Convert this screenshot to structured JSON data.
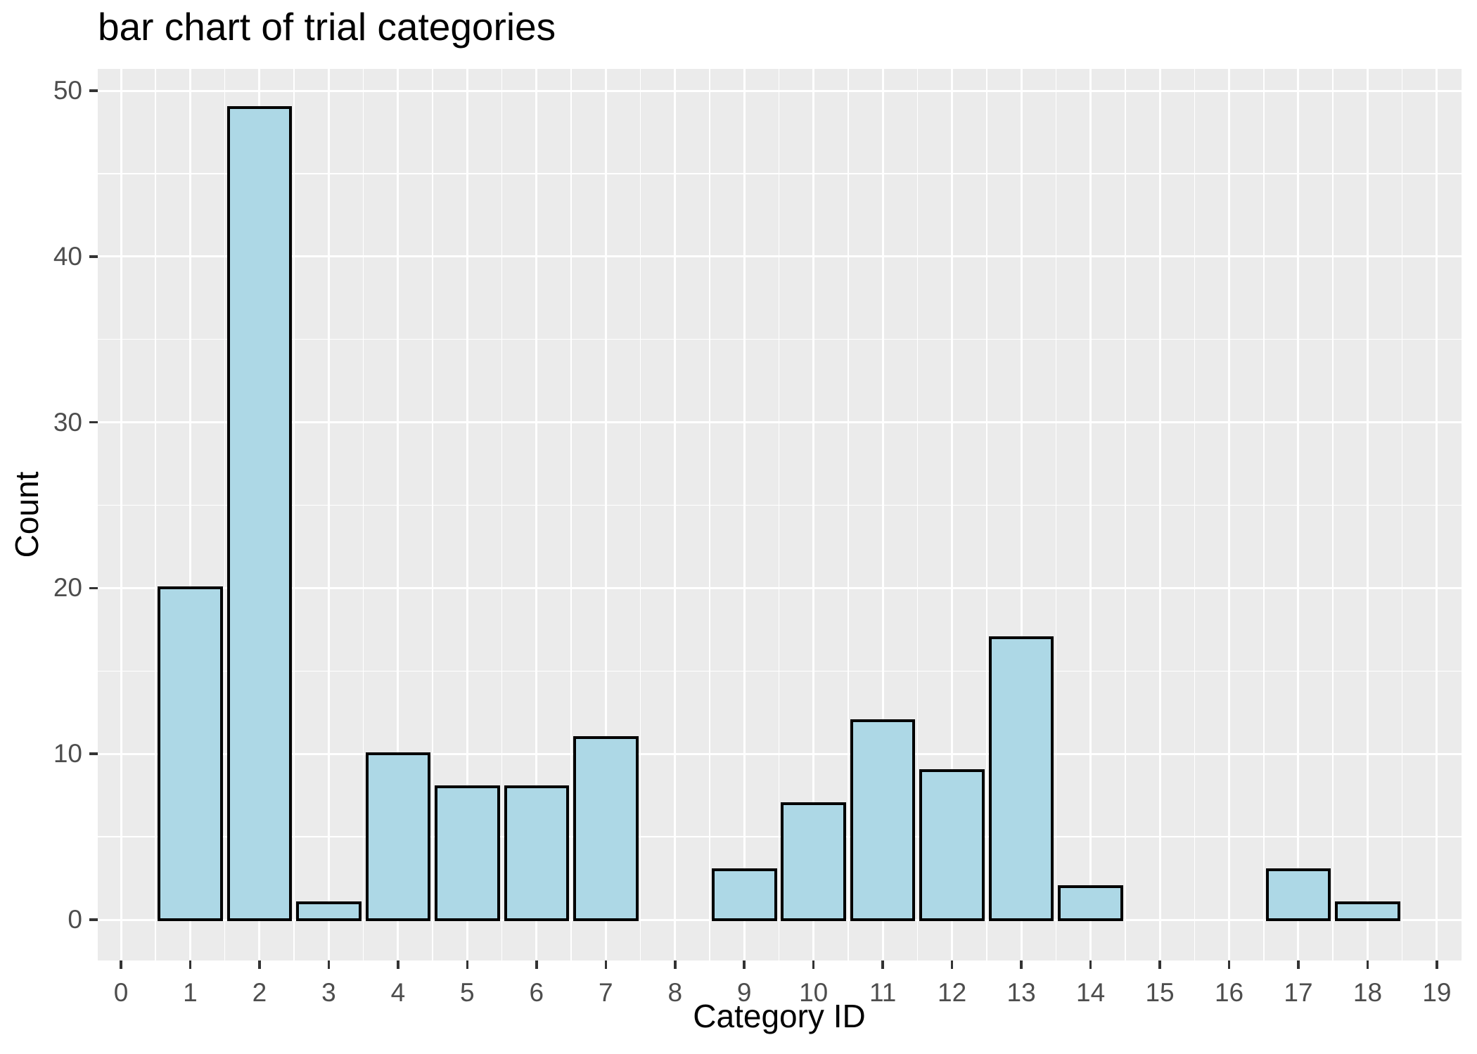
{
  "figure": {
    "title": "bar chart of trial categories",
    "x_axis_title": "Category ID",
    "y_axis_title": "Count"
  },
  "chart_data": {
    "type": "bar",
    "title": "bar chart of trial categories",
    "xlabel": "Category ID",
    "ylabel": "Count",
    "categories": [
      0,
      1,
      2,
      3,
      4,
      5,
      6,
      7,
      8,
      9,
      10,
      11,
      12,
      13,
      14,
      15,
      16,
      17,
      18,
      19
    ],
    "values": [
      0,
      20,
      49,
      1,
      10,
      8,
      8,
      11,
      0,
      3,
      7,
      12,
      9,
      17,
      2,
      0,
      0,
      3,
      1,
      0
    ],
    "x_tick_labels": [
      "0",
      "1",
      "2",
      "3",
      "4",
      "5",
      "6",
      "7",
      "8",
      "9",
      "10",
      "11",
      "12",
      "13",
      "14",
      "15",
      "16",
      "17",
      "18",
      "19"
    ],
    "y_major_ticks": [
      0,
      10,
      20,
      30,
      40,
      50
    ],
    "y_minor_ticks": [
      5,
      15,
      25,
      35,
      45
    ],
    "y_tick_labels": [
      "0",
      "10",
      "20",
      "30",
      "40",
      "50"
    ],
    "xlim": [
      -0.335,
      19.36
    ],
    "ylim": [
      0,
      50
    ],
    "bar_width": 0.9,
    "grid": "on",
    "legend_position": "none",
    "colors": {
      "bar_fill": "#ADD8E6",
      "bar_stroke": "#000000",
      "panel_background": "#EBEBEB",
      "gridline": "#FFFFFF",
      "tick_label": "#4D4D4D",
      "tick_mark": "#333333",
      "title_text": "#000000"
    }
  }
}
